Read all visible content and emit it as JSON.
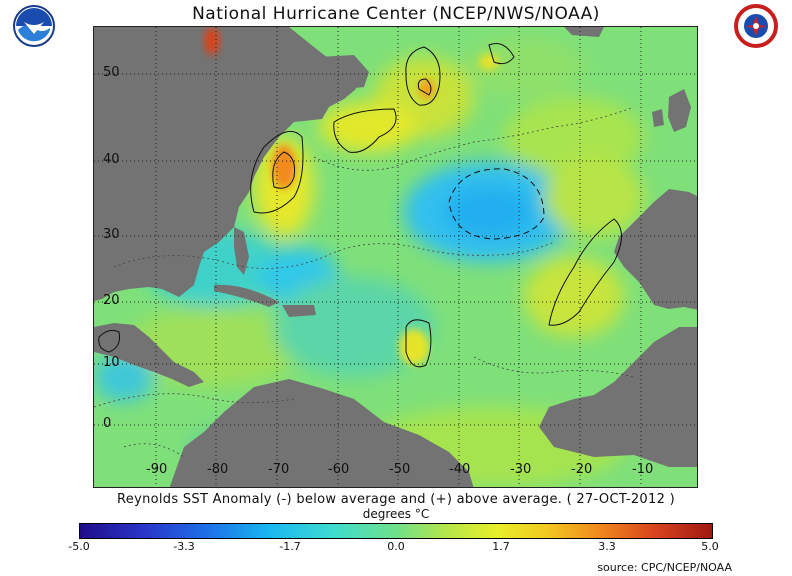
{
  "title": "National Hurricane Center (NCEP/NWS/NOAA)",
  "caption": "Reynolds SST Anomaly (-) below average and (+) above average. ( 27-OCT-2012 )",
  "units_label": "degrees",
  "units_symbol": "°C",
  "longitude_labels": [
    "-90",
    "-80",
    "-70",
    "-60",
    "-50",
    "-40",
    "-30",
    "-20",
    "-10"
  ],
  "latitude_labels": [
    "50",
    "40",
    "30",
    "20",
    "10",
    "0"
  ],
  "colorbar_labels": [
    "-5.0",
    "-3.3",
    "-1.7",
    "0.0",
    "1.7",
    "3.3",
    "5.0"
  ],
  "source": "source:  CPC/NCEP/NOAA",
  "colors": {
    "land": "#737373",
    "ocean_base": "#7fe07a",
    "warm": "#f2ea24",
    "cool": "#33c8e8",
    "hot": "#e8901c"
  },
  "icons": {
    "left_logo": "noaa-logo-icon",
    "right_logo": "nws-logo-icon"
  }
}
